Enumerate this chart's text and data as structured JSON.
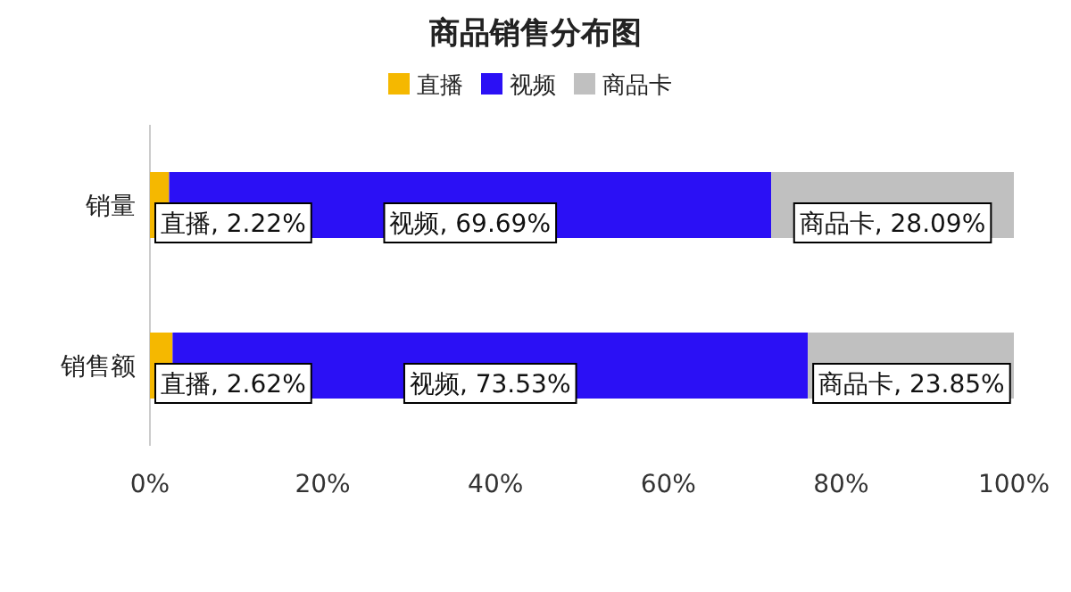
{
  "chart_data": {
    "type": "bar",
    "orientation": "horizontal",
    "stacked": true,
    "title": "商品销售分布图",
    "categories": [
      "销量",
      "销售额"
    ],
    "series": [
      {
        "name": "直播",
        "color": "#f5b800",
        "values": [
          2.22,
          2.62
        ],
        "value_labels": [
          "直播, 2.22%",
          "直播, 2.62%"
        ]
      },
      {
        "name": "视频",
        "color": "#2b10f5",
        "values": [
          69.69,
          73.53
        ],
        "value_labels": [
          "视频, 69.69%",
          "视频, 73.53%"
        ]
      },
      {
        "name": "商品卡",
        "color": "#c0c0c0",
        "values": [
          28.09,
          23.85
        ],
        "value_labels": [
          "商品卡, 28.09%",
          "商品卡, 23.85%"
        ]
      }
    ],
    "xlim": [
      0,
      100
    ],
    "xticks": [
      {
        "value": 0,
        "label": "0%"
      },
      {
        "value": 20,
        "label": "20%"
      },
      {
        "value": 40,
        "label": "40%"
      },
      {
        "value": 60,
        "label": "60%"
      },
      {
        "value": 80,
        "label": "80%"
      },
      {
        "value": 100,
        "label": "100%"
      }
    ],
    "legend": "top"
  }
}
